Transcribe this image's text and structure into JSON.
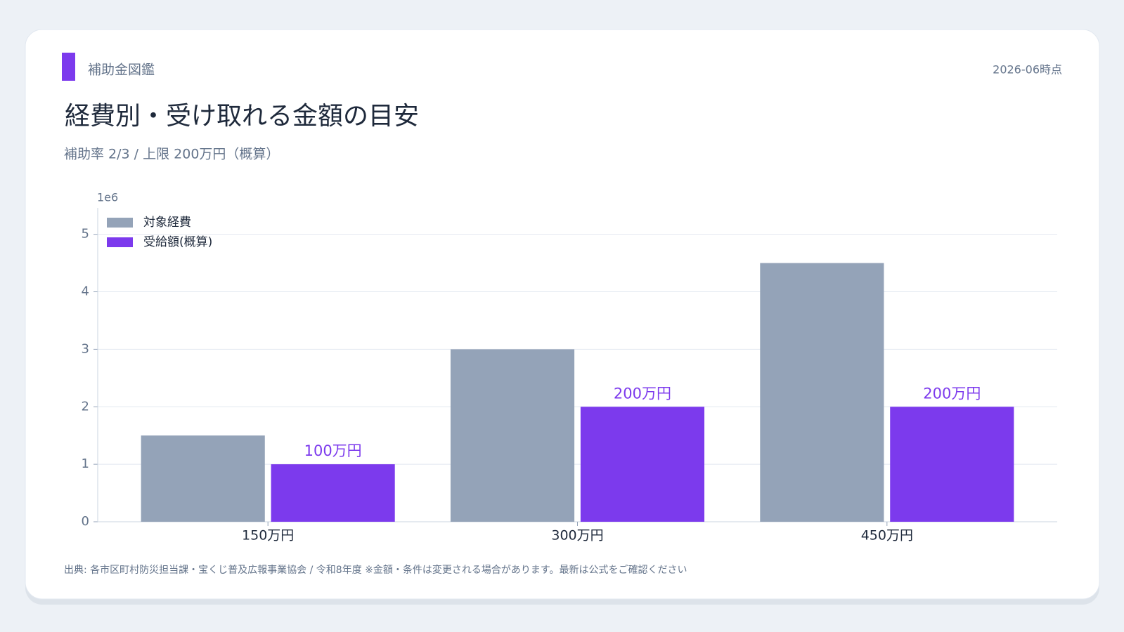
{
  "header": {
    "brand": "補助金図鑑",
    "date": "2026-06時点",
    "title": "経費別・受け取れる金額の目安",
    "subtitle": "補助率 2/3 / 上限 200万円（概算）"
  },
  "footer": {
    "source": "出典: 各市区町村防災担当課・宝くじ普及広報事業協会 / 令和8年度 ※金額・条件は変更される場合があります。最新は公式をご確認ください"
  },
  "chart_data": {
    "type": "bar",
    "categories": [
      "150万円",
      "300万円",
      "450万円"
    ],
    "series": [
      {
        "name": "対象経費",
        "color": "#94a3b8",
        "values": [
          1500000,
          3000000,
          4500000
        ]
      },
      {
        "name": "受給額(概算)",
        "color": "#7c3aed",
        "values": [
          1000000,
          2000000,
          2000000
        ],
        "value_labels": [
          "100万円",
          "200万円",
          "200万円"
        ]
      }
    ],
    "ylim": [
      0,
      5460000
    ],
    "yticks": [
      {
        "value": 0,
        "label": "0"
      },
      {
        "value": 1000000,
        "label": "1"
      },
      {
        "value": 2000000,
        "label": "2"
      },
      {
        "value": 3000000,
        "label": "3"
      },
      {
        "value": 4000000,
        "label": "4"
      },
      {
        "value": 5000000,
        "label": "5"
      }
    ],
    "y_offset_label": "1e6",
    "grid": true,
    "legend": "upper left"
  }
}
